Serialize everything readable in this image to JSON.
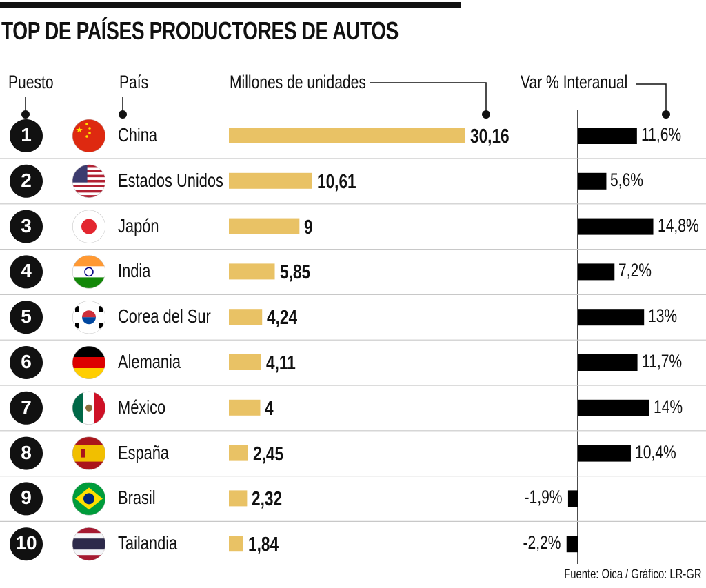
{
  "title": "TOP DE PAÍSES PRODUCTORES DE AUTOS",
  "headers": {
    "rank": "Puesto",
    "country": "País",
    "units": "Millones de unidades",
    "var": "Var % Interanual"
  },
  "source": "Fuente: Oica / Gráfico: LR-GR",
  "colors": {
    "units_bar": "#E9C265",
    "var_bar": "#000000",
    "rank_circle": "#111111",
    "separator": "#c8c8c8"
  },
  "chart_data": {
    "type": "bar",
    "title": "TOP DE PAÍSES PRODUCTORES DE AUTOS",
    "categories": [
      "China",
      "Estados Unidos",
      "Japón",
      "India",
      "Corea del Sur",
      "Alemania",
      "México",
      "España",
      "Brasil",
      "Tailandia"
    ],
    "ranks": [
      "1",
      "2",
      "3",
      "4",
      "5",
      "6",
      "7",
      "8",
      "9",
      "10"
    ],
    "flags": [
      "china-flag",
      "usa-flag",
      "japan-flag",
      "india-flag",
      "korea-flag",
      "germany-flag",
      "mexico-flag",
      "spain-flag",
      "brazil-flag",
      "thailand-flag"
    ],
    "series": [
      {
        "name": "Millones de unidades",
        "values": [
          30.16,
          10.61,
          9,
          5.85,
          4.24,
          4.11,
          4,
          2.45,
          2.32,
          1.84
        ],
        "labels": [
          "30,16",
          "10,61",
          "9",
          "5,85",
          "4,24",
          "4,11",
          "4",
          "2,45",
          "2,32",
          "1,84"
        ]
      },
      {
        "name": "Var % Interanual",
        "values": [
          11.6,
          5.6,
          14.8,
          7.2,
          13,
          11.7,
          14,
          10.4,
          -1.9,
          -2.2
        ],
        "labels": [
          "11,6%",
          "5,6%",
          "14,8%",
          "7,2%",
          "13%",
          "11,7%",
          "14%",
          "10,4%",
          "-1,9%",
          "-2,2%"
        ]
      }
    ],
    "xlabel": "",
    "ylabel": "",
    "grid": false,
    "legend": "none"
  }
}
